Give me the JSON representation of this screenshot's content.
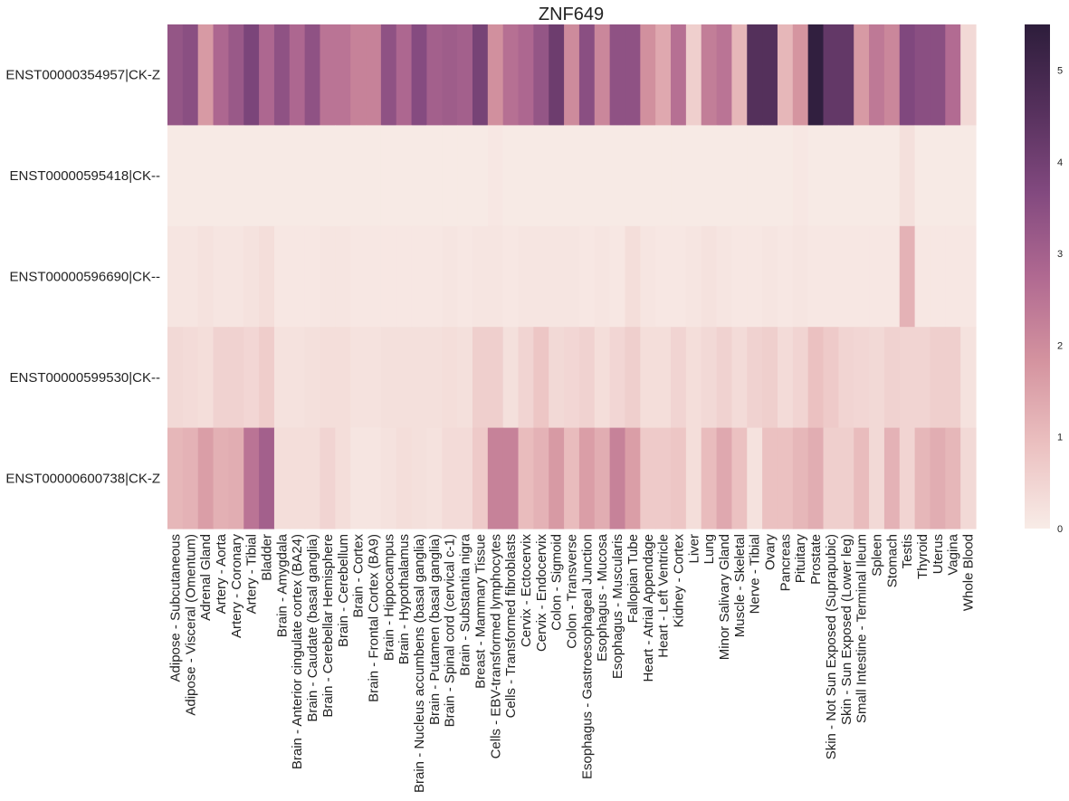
{
  "chart_data": {
    "type": "heatmap",
    "title": "ZNF649",
    "rows": [
      "ENST00000354957|CK-Z",
      "ENST00000595418|CK--",
      "ENST00000596690|CK--",
      "ENST00000599530|CK--",
      "ENST00000600738|CK-Z"
    ],
    "columns": [
      "Adipose - Subcutaneous",
      "Adipose - Visceral (Omentum)",
      "Adrenal Gland",
      "Artery - Aorta",
      "Artery - Coronary",
      "Artery - Tibial",
      "Bladder",
      "Brain - Amygdala",
      "Brain - Anterior cingulate cortex (BA24)",
      "Brain - Caudate (basal ganglia)",
      "Brain - Cerebellar Hemisphere",
      "Brain - Cerebellum",
      "Brain - Cortex",
      "Brain - Frontal Cortex (BA9)",
      "Brain - Hippocampus",
      "Brain - Hypothalamus",
      "Brain - Nucleus accumbens (basal ganglia)",
      "Brain - Putamen (basal ganglia)",
      "Brain - Spinal cord (cervical c-1)",
      "Brain - Substantia nigra",
      "Breast - Mammary Tissue",
      "Cells - EBV-transformed lymphocytes",
      "Cells - Transformed fibroblasts",
      "Cervix - Ectocervix",
      "Cervix - Endocervix",
      "Colon - Sigmoid",
      "Colon - Transverse",
      "Esophagus - Gastroesophageal Junction",
      "Esophagus - Mucosa",
      "Esophagus - Muscularis",
      "Fallopian Tube",
      "Heart - Atrial Appendage",
      "Heart - Left Ventricle",
      "Kidney - Cortex",
      "Liver",
      "Lung",
      "Minor Salivary Gland",
      "Muscle - Skeletal",
      "Nerve - Tibial",
      "Ovary",
      "Pancreas",
      "Pituitary",
      "Prostate",
      "Skin - Not Sun Exposed (Suprapubic)",
      "Skin - Sun Exposed (Lower leg)",
      "Small Intestine - Terminal Ileum",
      "Spleen",
      "Stomach",
      "Testis",
      "Thyroid",
      "Uterus",
      "Vagina",
      "Whole Blood"
    ],
    "values": [
      [
        3.3,
        3.5,
        1.7,
        2.8,
        3.2,
        3.8,
        2.8,
        3.4,
        2.8,
        3.4,
        2.5,
        2.5,
        2.2,
        2.2,
        3.4,
        2.8,
        3.6,
        3.0,
        3.1,
        3.0,
        3.9,
        1.9,
        2.6,
        2.8,
        3.3,
        4.1,
        2.0,
        3.5,
        2.1,
        3.4,
        3.4,
        1.9,
        1.4,
        2.6,
        0.6,
        2.3,
        2.5,
        1.1,
        4.6,
        4.6,
        1.1,
        1.8,
        5.4,
        4.3,
        4.3,
        1.7,
        2.4,
        2.1,
        3.7,
        3.5,
        3.5,
        2.7,
        0.4
      ],
      [
        0.05,
        0.05,
        0.05,
        0.05,
        0.05,
        0.05,
        0.05,
        0.05,
        0.05,
        0.05,
        0.05,
        0.05,
        0.05,
        0.05,
        0.05,
        0.05,
        0.05,
        0.05,
        0.05,
        0.05,
        0.05,
        0.1,
        0.05,
        0.05,
        0.05,
        0.05,
        0.05,
        0.05,
        0.05,
        0.05,
        0.05,
        0.05,
        0.05,
        0.05,
        0.05,
        0.05,
        0.05,
        0.05,
        0.05,
        0.05,
        0.05,
        0.1,
        0.05,
        0.05,
        0.05,
        0.05,
        0.05,
        0.05,
        0.25,
        0.05,
        0.05,
        0.05,
        0.05
      ],
      [
        0.15,
        0.15,
        0.2,
        0.15,
        0.15,
        0.2,
        0.3,
        0.1,
        0.1,
        0.1,
        0.15,
        0.15,
        0.1,
        0.1,
        0.1,
        0.1,
        0.1,
        0.1,
        0.15,
        0.1,
        0.15,
        0.15,
        0.1,
        0.15,
        0.15,
        0.15,
        0.15,
        0.1,
        0.15,
        0.1,
        0.3,
        0.15,
        0.1,
        0.1,
        0.15,
        0.2,
        0.15,
        0.1,
        0.1,
        0.15,
        0.1,
        0.15,
        0.1,
        0.1,
        0.1,
        0.1,
        0.1,
        0.1,
        1.2,
        0.1,
        0.1,
        0.1,
        0.1
      ],
      [
        0.4,
        0.35,
        0.3,
        0.55,
        0.55,
        0.45,
        0.65,
        0.2,
        0.2,
        0.25,
        0.3,
        0.3,
        0.2,
        0.2,
        0.25,
        0.25,
        0.25,
        0.25,
        0.3,
        0.25,
        0.6,
        0.6,
        0.25,
        0.5,
        0.8,
        0.4,
        0.45,
        0.55,
        0.3,
        0.45,
        0.6,
        0.3,
        0.3,
        0.5,
        0.3,
        0.4,
        0.55,
        0.35,
        0.55,
        0.6,
        0.35,
        0.5,
        0.9,
        0.7,
        0.5,
        0.45,
        0.4,
        0.55,
        0.5,
        0.5,
        0.6,
        0.6,
        0.2
      ],
      [
        1.1,
        1.2,
        1.6,
        1.25,
        1.3,
        2.5,
        3.0,
        0.3,
        0.3,
        0.3,
        0.5,
        0.3,
        0.15,
        0.15,
        0.2,
        0.3,
        0.25,
        0.2,
        0.35,
        0.35,
        0.7,
        2.2,
        2.2,
        1.0,
        1.2,
        1.7,
        1.0,
        1.6,
        1.3,
        2.2,
        1.6,
        0.7,
        0.7,
        0.8,
        0.3,
        1.0,
        1.4,
        0.9,
        0.2,
        0.9,
        0.9,
        1.1,
        1.3,
        0.6,
        0.6,
        1.0,
        0.4,
        1.2,
        0.5,
        1.1,
        1.3,
        1.1,
        0.4
      ]
    ],
    "colorbar": {
      "min": 0,
      "max": 5.5,
      "ticks": [
        0,
        1,
        2,
        3,
        4,
        5
      ]
    },
    "colors": [
      "#f8ece7",
      "#ebc0c0",
      "#d4939f",
      "#b06991",
      "#82497f",
      "#55305c",
      "#2d1d3b"
    ]
  }
}
